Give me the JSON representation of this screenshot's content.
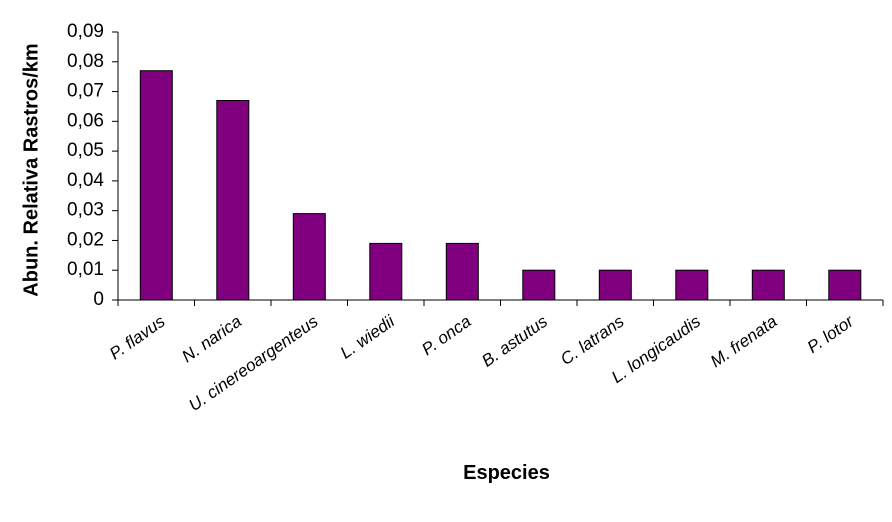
{
  "chart_data": {
    "type": "bar",
    "title": "",
    "xlabel": "Especies",
    "ylabel": "Abun. Relativa Rastros/km",
    "categories": [
      "P. flavus",
      "N. narica",
      "U. cinereoargenteus",
      "L. wiedii",
      "P. onca",
      "B. astutus",
      "C. latrans",
      "L. longicaudis",
      "M. frenata",
      "P. lotor"
    ],
    "values": [
      0.077,
      0.067,
      0.029,
      0.019,
      0.019,
      0.01,
      0.01,
      0.01,
      0.01,
      0.01
    ],
    "ylim": [
      0,
      0.09
    ],
    "yticks": [
      "0",
      "0,01",
      "0,02",
      "0,03",
      "0,04",
      "0,05",
      "0,06",
      "0,07",
      "0,08",
      "0,09"
    ],
    "grid": false,
    "legend": "none",
    "bar_color": "#800080"
  }
}
